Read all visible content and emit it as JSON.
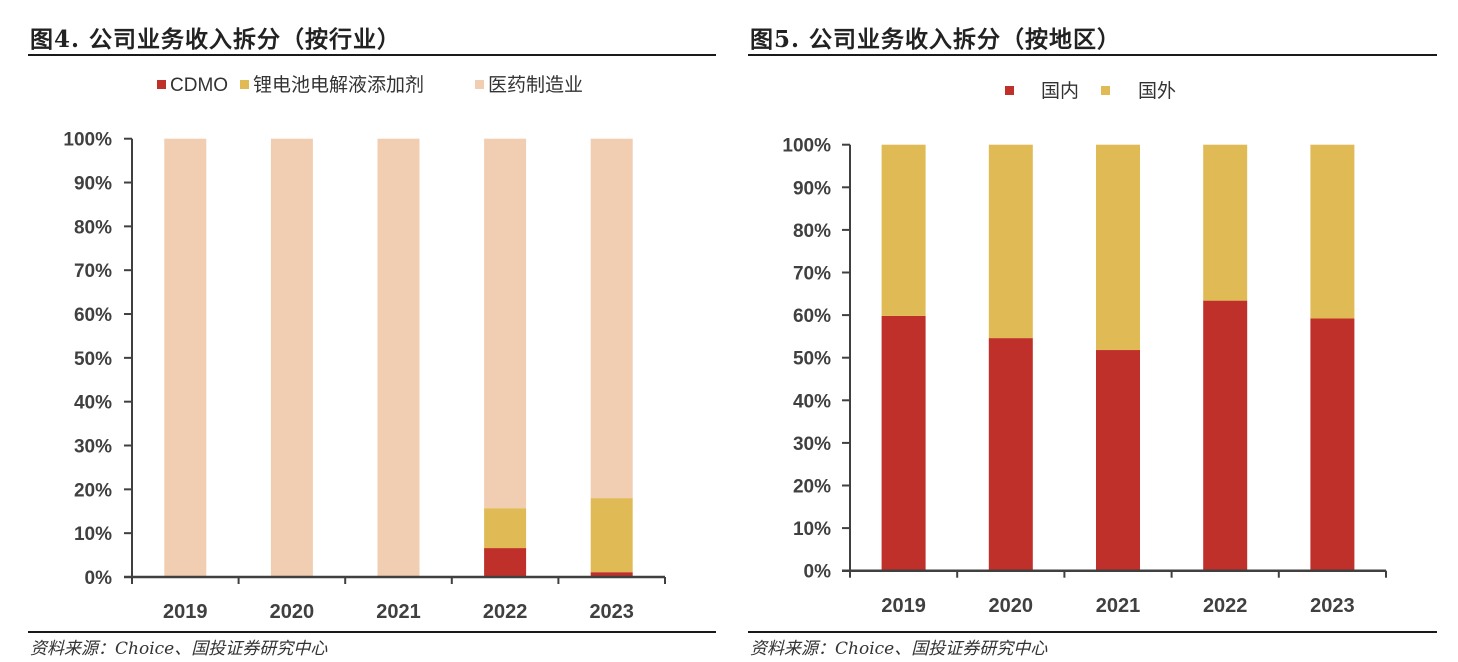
{
  "chart_data": [
    {
      "id": "fig4",
      "type": "bar",
      "stacked": true,
      "title": "图4. 公司业务收入拆分（按行业）",
      "xlabel": "",
      "ylabel": "",
      "ylim": [
        0,
        100
      ],
      "yticks": [
        "0%",
        "10%",
        "20%",
        "30%",
        "40%",
        "50%",
        "60%",
        "70%",
        "80%",
        "90%",
        "100%"
      ],
      "categories": [
        "2019",
        "2020",
        "2021",
        "2022",
        "2023"
      ],
      "legend_position": "top-center",
      "grid": false,
      "series": [
        {
          "name": "CDMO",
          "color": "#C0302A",
          "values": [
            0,
            0,
            0,
            6.6,
            1.1
          ]
        },
        {
          "name": "锂电池电解液添加剂",
          "color": "#E0BB55",
          "values": [
            0,
            0,
            0,
            9.1,
            16.9
          ]
        },
        {
          "name": "医药制造业",
          "color": "#F1CDB2",
          "values": [
            100,
            100,
            100,
            84.3,
            82.0
          ]
        }
      ],
      "source": "资料来源：Choice、国投证券研究中心"
    },
    {
      "id": "fig5",
      "type": "bar",
      "stacked": true,
      "title": "图5. 公司业务收入拆分（按地区）",
      "xlabel": "",
      "ylabel": "",
      "ylim": [
        0,
        100
      ],
      "yticks": [
        "0%",
        "10%",
        "20%",
        "30%",
        "40%",
        "50%",
        "60%",
        "70%",
        "80%",
        "90%",
        "100%"
      ],
      "categories": [
        "2019",
        "2020",
        "2021",
        "2022",
        "2023"
      ],
      "legend_position": "top-center",
      "grid": false,
      "series": [
        {
          "name": "国内",
          "color": "#C0302A",
          "values": [
            59.8,
            54.6,
            51.8,
            63.4,
            59.2
          ]
        },
        {
          "name": "国外",
          "color": "#E0BB55",
          "values": [
            40.2,
            45.4,
            48.2,
            36.6,
            40.8
          ]
        }
      ],
      "source": "资料来源：Choice、国投证券研究中心"
    }
  ]
}
